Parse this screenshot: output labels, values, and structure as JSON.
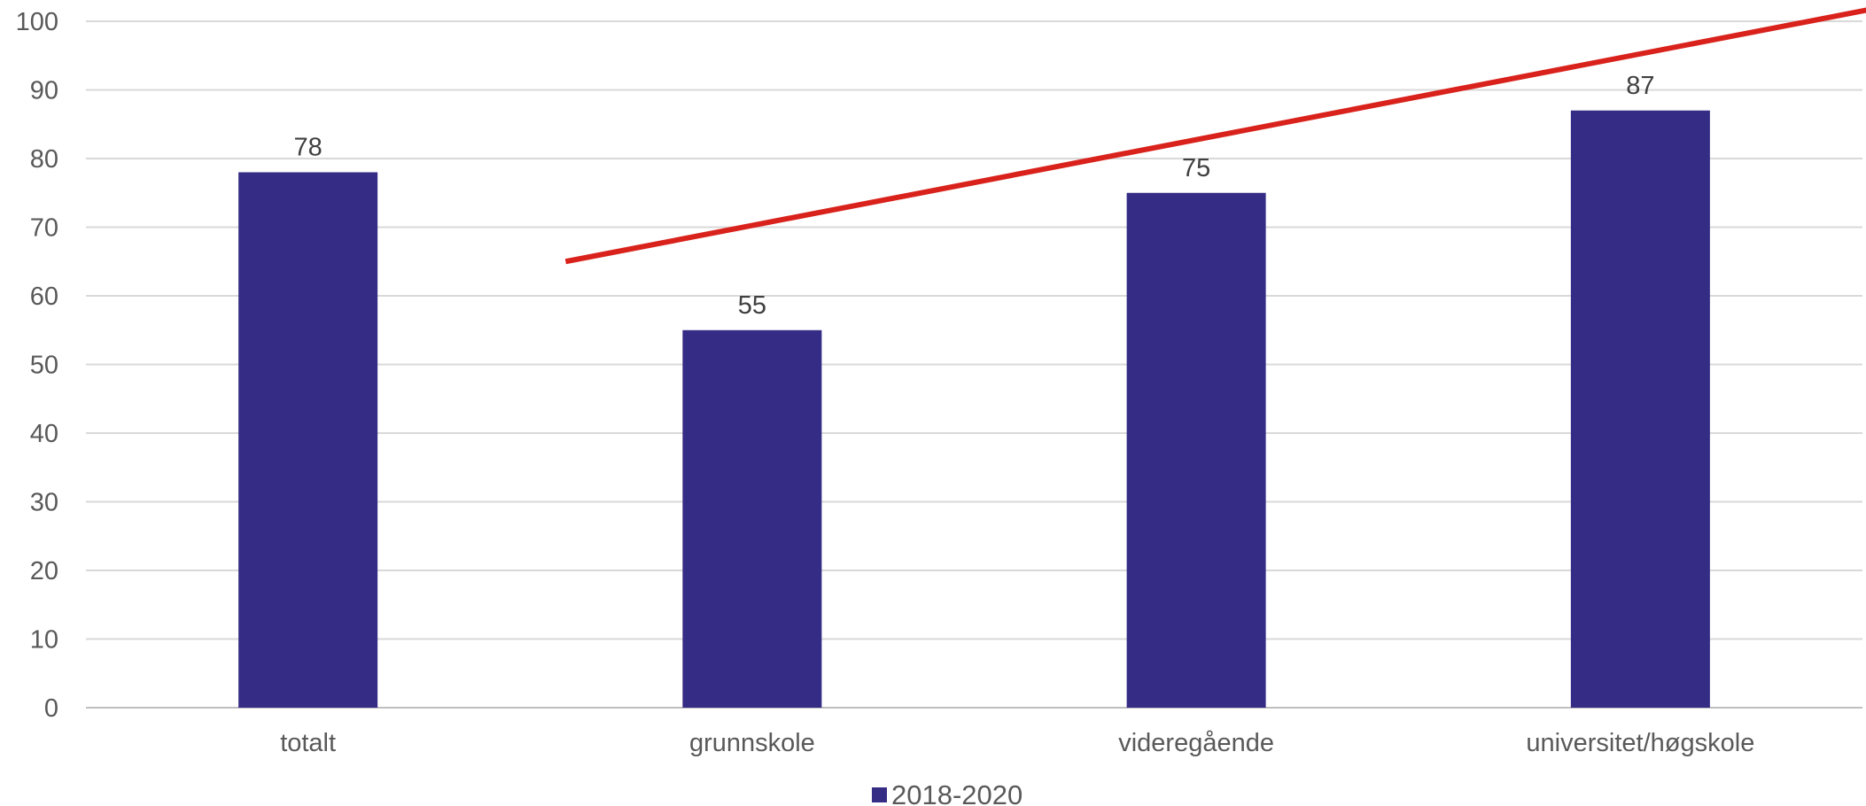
{
  "chart_data": {
    "type": "bar",
    "categories": [
      "totalt",
      "grunnskole",
      "videregående",
      "universitet/høgskole"
    ],
    "series": [
      {
        "name": "2018-2020",
        "values": [
          78,
          55,
          75,
          87
        ],
        "color": "#352c85"
      }
    ],
    "data_labels": [
      "78",
      "55",
      "75",
      "87"
    ],
    "y_ticks": [
      "0",
      "10",
      "20",
      "30",
      "40",
      "50",
      "60",
      "70",
      "80",
      "90",
      "100"
    ],
    "ylim": [
      0,
      100
    ],
    "grid": true,
    "legend_placement": "bottom",
    "trend_line": {
      "color": "#d9221c",
      "x": [
        0.58,
        3.62
      ],
      "y": [
        65,
        103
      ]
    },
    "colors": {
      "grid": "#d9d9d9",
      "axis": "#bfbfbf",
      "text": "#595959"
    }
  }
}
